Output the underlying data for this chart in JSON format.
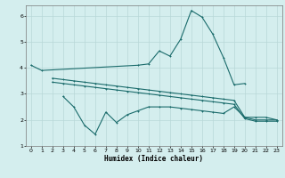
{
  "xlabel": "Humidex (Indice chaleur)",
  "bg_color": "#d4eeee",
  "grid_color": "#b8d8d8",
  "line_color": "#1a6b6b",
  "line1_x": [
    0,
    1,
    10,
    11,
    12,
    13,
    14,
    15,
    16,
    17,
    18,
    19,
    20
  ],
  "line1_y": [
    4.1,
    3.9,
    4.1,
    4.15,
    4.65,
    4.45,
    5.1,
    6.2,
    5.95,
    5.3,
    4.4,
    3.35,
    3.4
  ],
  "line2_x": [
    2,
    3,
    4,
    5,
    6,
    7,
    8,
    9,
    10,
    11,
    12,
    13,
    14,
    15,
    16,
    17,
    18,
    19,
    20,
    21,
    22,
    23
  ],
  "line2_y": [
    3.6,
    3.55,
    3.5,
    3.45,
    3.4,
    3.35,
    3.3,
    3.25,
    3.2,
    3.15,
    3.1,
    3.05,
    3.0,
    2.95,
    2.9,
    2.85,
    2.8,
    2.75,
    2.1,
    2.1,
    2.1,
    2.0
  ],
  "line3_x": [
    2,
    3,
    4,
    5,
    6,
    7,
    8,
    9,
    10,
    11,
    12,
    13,
    14,
    15,
    16,
    17,
    18,
    19,
    20,
    21,
    22,
    23
  ],
  "line3_y": [
    3.45,
    3.4,
    3.35,
    3.3,
    3.25,
    3.2,
    3.15,
    3.1,
    3.05,
    3.0,
    2.95,
    2.9,
    2.85,
    2.8,
    2.75,
    2.7,
    2.65,
    2.6,
    2.05,
    1.95,
    1.95,
    1.95
  ],
  "line4_x": [
    3,
    4,
    5,
    6,
    7,
    8,
    9,
    10,
    11,
    12,
    13,
    14,
    15,
    16,
    17,
    18,
    19,
    20,
    21,
    22,
    23
  ],
  "line4_y": [
    2.9,
    2.5,
    1.8,
    1.45,
    2.3,
    1.9,
    2.2,
    2.35,
    2.5,
    2.5,
    2.5,
    2.45,
    2.4,
    2.35,
    2.3,
    2.25,
    2.5,
    2.1,
    2.0,
    2.0,
    2.0
  ],
  "ylim": [
    1.0,
    6.4
  ],
  "xlim": [
    -0.5,
    23.5
  ],
  "yticks": [
    1,
    2,
    3,
    4,
    5,
    6
  ],
  "xticks": [
    0,
    1,
    2,
    3,
    4,
    5,
    6,
    7,
    8,
    9,
    10,
    11,
    12,
    13,
    14,
    15,
    16,
    17,
    18,
    19,
    20,
    21,
    22,
    23
  ]
}
